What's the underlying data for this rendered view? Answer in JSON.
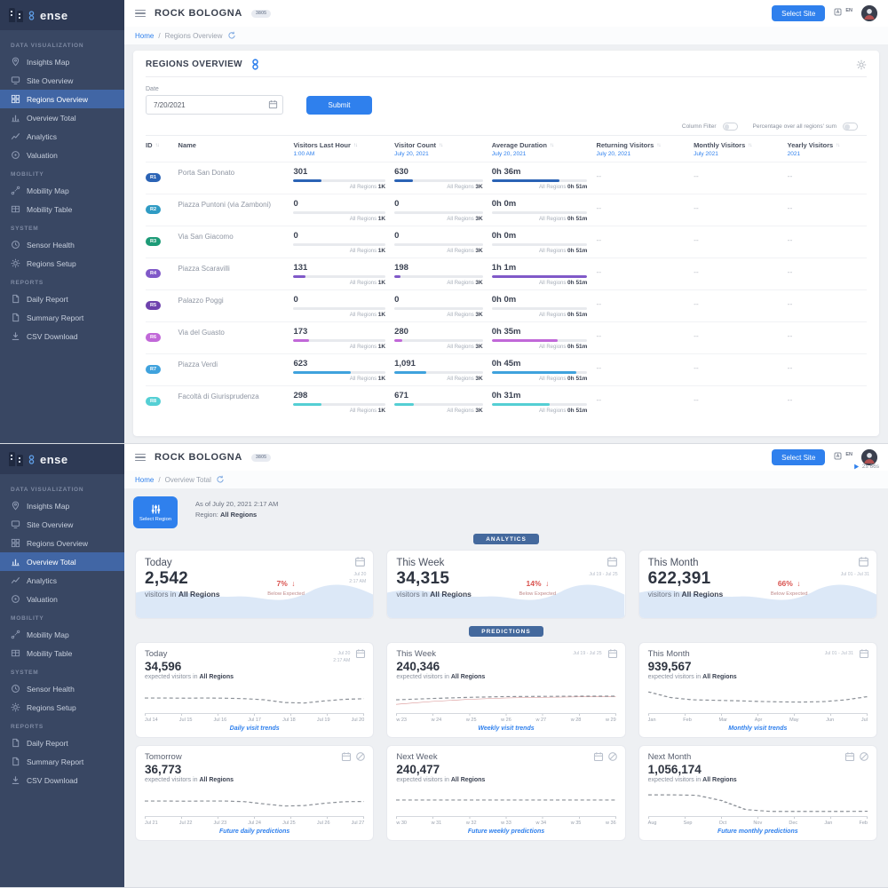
{
  "branding": {
    "logo_text": "ense"
  },
  "topbar": {
    "site_name": "ROCK BOLOGNA",
    "site_badge": "3805",
    "select_site_label": "Select Site",
    "language": "EN"
  },
  "crumb_separator": "/",
  "glyphs": {
    "sort": "↑↓",
    "down_arrow": "↓"
  },
  "sidebar": {
    "sections": [
      {
        "label": "DATA VISUALIZATION",
        "items": [
          "Insights Map",
          "Site Overview",
          "Regions Overview",
          "Overview Total",
          "Analytics",
          "Valuation"
        ]
      },
      {
        "label": "MOBILITY",
        "items": [
          "Mobility Map",
          "Mobility Table"
        ]
      },
      {
        "label": "SYSTEM",
        "items": [
          "Sensor Health",
          "Regions Setup"
        ]
      },
      {
        "label": "REPORTS",
        "items": [
          "Daily Report",
          "Summary Report",
          "CSV Download"
        ]
      }
    ]
  },
  "regions_view": {
    "breadcrumb": {
      "home": "Home",
      "current": "Regions Overview"
    },
    "card_title": "REGIONS OVERVIEW",
    "date_label": "Date",
    "date_value": "7/20/2021",
    "submit_label": "Submit",
    "toggles": {
      "column_filter": "Column Filter",
      "percentage": "Percentage over all regions' sum"
    },
    "all_regions_label": "All Regions",
    "empty_value": "--",
    "columns": {
      "id": "ID",
      "name": "Name",
      "vlh": {
        "label": "Visitors Last Hour",
        "sub": "1:00 AM",
        "total": "1K"
      },
      "vc": {
        "label": "Visitor Count",
        "sub": "July 20, 2021",
        "total": "3K"
      },
      "avg": {
        "label": "Average Duration",
        "sub": "July 20, 2021",
        "total": "0h 51m"
      },
      "ret": {
        "label": "Returning Visitors",
        "sub": "July 20, 2021"
      },
      "mon": {
        "label": "Monthly Visitors",
        "sub": "July 2021"
      },
      "yr": {
        "label": "Yearly Visitors",
        "sub": "2021"
      }
    },
    "rows": [
      {
        "id": "R1",
        "color": "#2b63b5",
        "name": "Porta San Donato",
        "vlh": "301",
        "vlh_w": "30%",
        "vc": "630",
        "vc_w": "21%",
        "avg": "0h 36m",
        "avg_w": "71%"
      },
      {
        "id": "R2",
        "color": "#2f9bc4",
        "name": "Piazza Puntoni (via Zamboni)",
        "vlh": "0",
        "vlh_w": "0%",
        "vc": "0",
        "vc_w": "0%",
        "avg": "0h 0m",
        "avg_w": "0%"
      },
      {
        "id": "R3",
        "color": "#1d9b77",
        "name": "Via San Giacomo",
        "vlh": "0",
        "vlh_w": "0%",
        "vc": "0",
        "vc_w": "0%",
        "avg": "0h 0m",
        "avg_w": "0%"
      },
      {
        "id": "R4",
        "color": "#8059c8",
        "name": "Piazza Scaravilli",
        "vlh": "131",
        "vlh_w": "13%",
        "vc": "198",
        "vc_w": "7%",
        "avg": "1h 1m",
        "avg_w": "100%"
      },
      {
        "id": "R5",
        "color": "#6e42ad",
        "name": "Palazzo Poggi",
        "vlh": "0",
        "vlh_w": "0%",
        "vc": "0",
        "vc_w": "0%",
        "avg": "0h 0m",
        "avg_w": "0%"
      },
      {
        "id": "R6",
        "color": "#c168d8",
        "name": "Via del Guasto",
        "vlh": "173",
        "vlh_w": "17%",
        "vc": "280",
        "vc_w": "9%",
        "avg": "0h 35m",
        "avg_w": "69%"
      },
      {
        "id": "R7",
        "color": "#3fa2dd",
        "name": "Piazza Verdi",
        "vlh": "623",
        "vlh_w": "62%",
        "vc": "1,091",
        "vc_w": "36%",
        "avg": "0h 45m",
        "avg_w": "88%"
      },
      {
        "id": "R8",
        "color": "#54cfd4",
        "name": "Facoltà di Giurisprudenza",
        "vlh": "298",
        "vlh_w": "30%",
        "vc": "671",
        "vc_w": "22%",
        "avg": "0h 31m",
        "avg_w": "61%"
      }
    ]
  },
  "total_view": {
    "breadcrumb": {
      "home": "Home",
      "current": "Overview Total"
    },
    "timer": "2s 66s",
    "select_region_label": "Select Region",
    "as_of": "As of July 20, 2021 2:17 AM",
    "region_label": "Region:",
    "region_value": "All Regions",
    "analytics_badge": "ANALYTICS",
    "predictions_badge": "PREDICTIONS",
    "analytics_cards": [
      {
        "title": "Today",
        "value": "2,542",
        "sub_prefix": "visitors in",
        "region": "All Regions",
        "delta": "7%",
        "delta_label": "Below Expected",
        "date1": "Jul 20",
        "date2": "2:17 AM"
      },
      {
        "title": "This Week",
        "value": "34,315",
        "sub_prefix": "visitors in",
        "region": "All Regions",
        "delta": "14%",
        "delta_label": "Below Expected",
        "date1": "Jul 19 - Jul 25",
        "date2": ""
      },
      {
        "title": "This Month",
        "value": "622,391",
        "sub_prefix": "visitors in",
        "region": "All Regions",
        "delta": "66%",
        "delta_label": "Below Expected",
        "date1": "Jul 01 - Jul 31",
        "date2": ""
      }
    ],
    "prediction_cards": [
      {
        "title": "Today",
        "value": "34,596",
        "sub_prefix": "expected visitors in",
        "region": "All Regions",
        "caption": "Daily visit trends",
        "date1": "Jul 20",
        "date2": "2:17 AM",
        "xticks": [
          "Jul 14",
          "Jul 15",
          "Jul 16",
          "Jul 17",
          "Jul 18",
          "Jul 19",
          "Jul 20"
        ],
        "spark": [
          0.58,
          0.58,
          0.57,
          0.58,
          0.57,
          0.55,
          0.5,
          0.38,
          0.36,
          0.45,
          0.52,
          0.55
        ]
      },
      {
        "title": "This Week",
        "value": "240,346",
        "sub_prefix": "expected visitors in",
        "region": "All Regions",
        "caption": "Weekly visit trends",
        "date1": "Jul 19 - Jul 25",
        "date2": "",
        "xticks": [
          "w 23",
          "w 24",
          "w 25",
          "w 26",
          "w 27",
          "w 28",
          "w 29"
        ],
        "spark": [
          0.5,
          0.56,
          0.61,
          0.64,
          0.65,
          0.66,
          0.66
        ],
        "spark2": [
          0.3,
          0.43,
          0.52,
          0.58,
          0.61,
          0.63,
          0.64
        ]
      },
      {
        "title": "This Month",
        "value": "939,567",
        "sub_prefix": "expected visitors in",
        "region": "All Regions",
        "caption": "Monthly visit trends",
        "date1": "Jul 01 - Jul 31",
        "date2": "",
        "xticks": [
          "Jan",
          "Feb",
          "Mar",
          "Apr",
          "May",
          "Jun",
          "Jul"
        ],
        "spark": [
          0.85,
          0.6,
          0.5,
          0.48,
          0.46,
          0.43,
          0.41,
          0.4,
          0.42,
          0.5,
          0.64
        ]
      },
      {
        "title": "Tomorrow",
        "value": "36,773",
        "sub_prefix": "expected visitors in",
        "region": "All Regions",
        "caption": "Future daily predictions",
        "date1": "",
        "date2": "",
        "xticks": [
          "Jul 21",
          "Jul 22",
          "Jul 23",
          "Jul 24",
          "Jul 25",
          "Jul 26",
          "Jul 27"
        ],
        "spark": [
          0.58,
          0.58,
          0.57,
          0.58,
          0.58,
          0.55,
          0.45,
          0.36,
          0.38,
          0.48,
          0.55,
          0.56
        ]
      },
      {
        "title": "Next Week",
        "value": "240,477",
        "sub_prefix": "expected visitors in",
        "region": "All Regions",
        "caption": "Future weekly predictions",
        "date1": "",
        "date2": "",
        "xticks": [
          "w 30",
          "w 31",
          "w 32",
          "w 33",
          "w 34",
          "w 35",
          "w 36"
        ],
        "spark": [
          0.62,
          0.62,
          0.62,
          0.62,
          0.62,
          0.62,
          0.62
        ]
      },
      {
        "title": "Next Month",
        "value": "1,056,174",
        "sub_prefix": "expected visitors in",
        "region": "All Regions",
        "caption": "Future monthly predictions",
        "date1": "",
        "date2": "",
        "xticks": [
          "Aug",
          "Sep",
          "Oct",
          "Nov",
          "Dec",
          "Jan",
          "Feb"
        ],
        "spark": [
          0.85,
          0.85,
          0.83,
          0.6,
          0.2,
          0.12,
          0.12,
          0.12,
          0.12,
          0.13
        ]
      }
    ]
  }
}
